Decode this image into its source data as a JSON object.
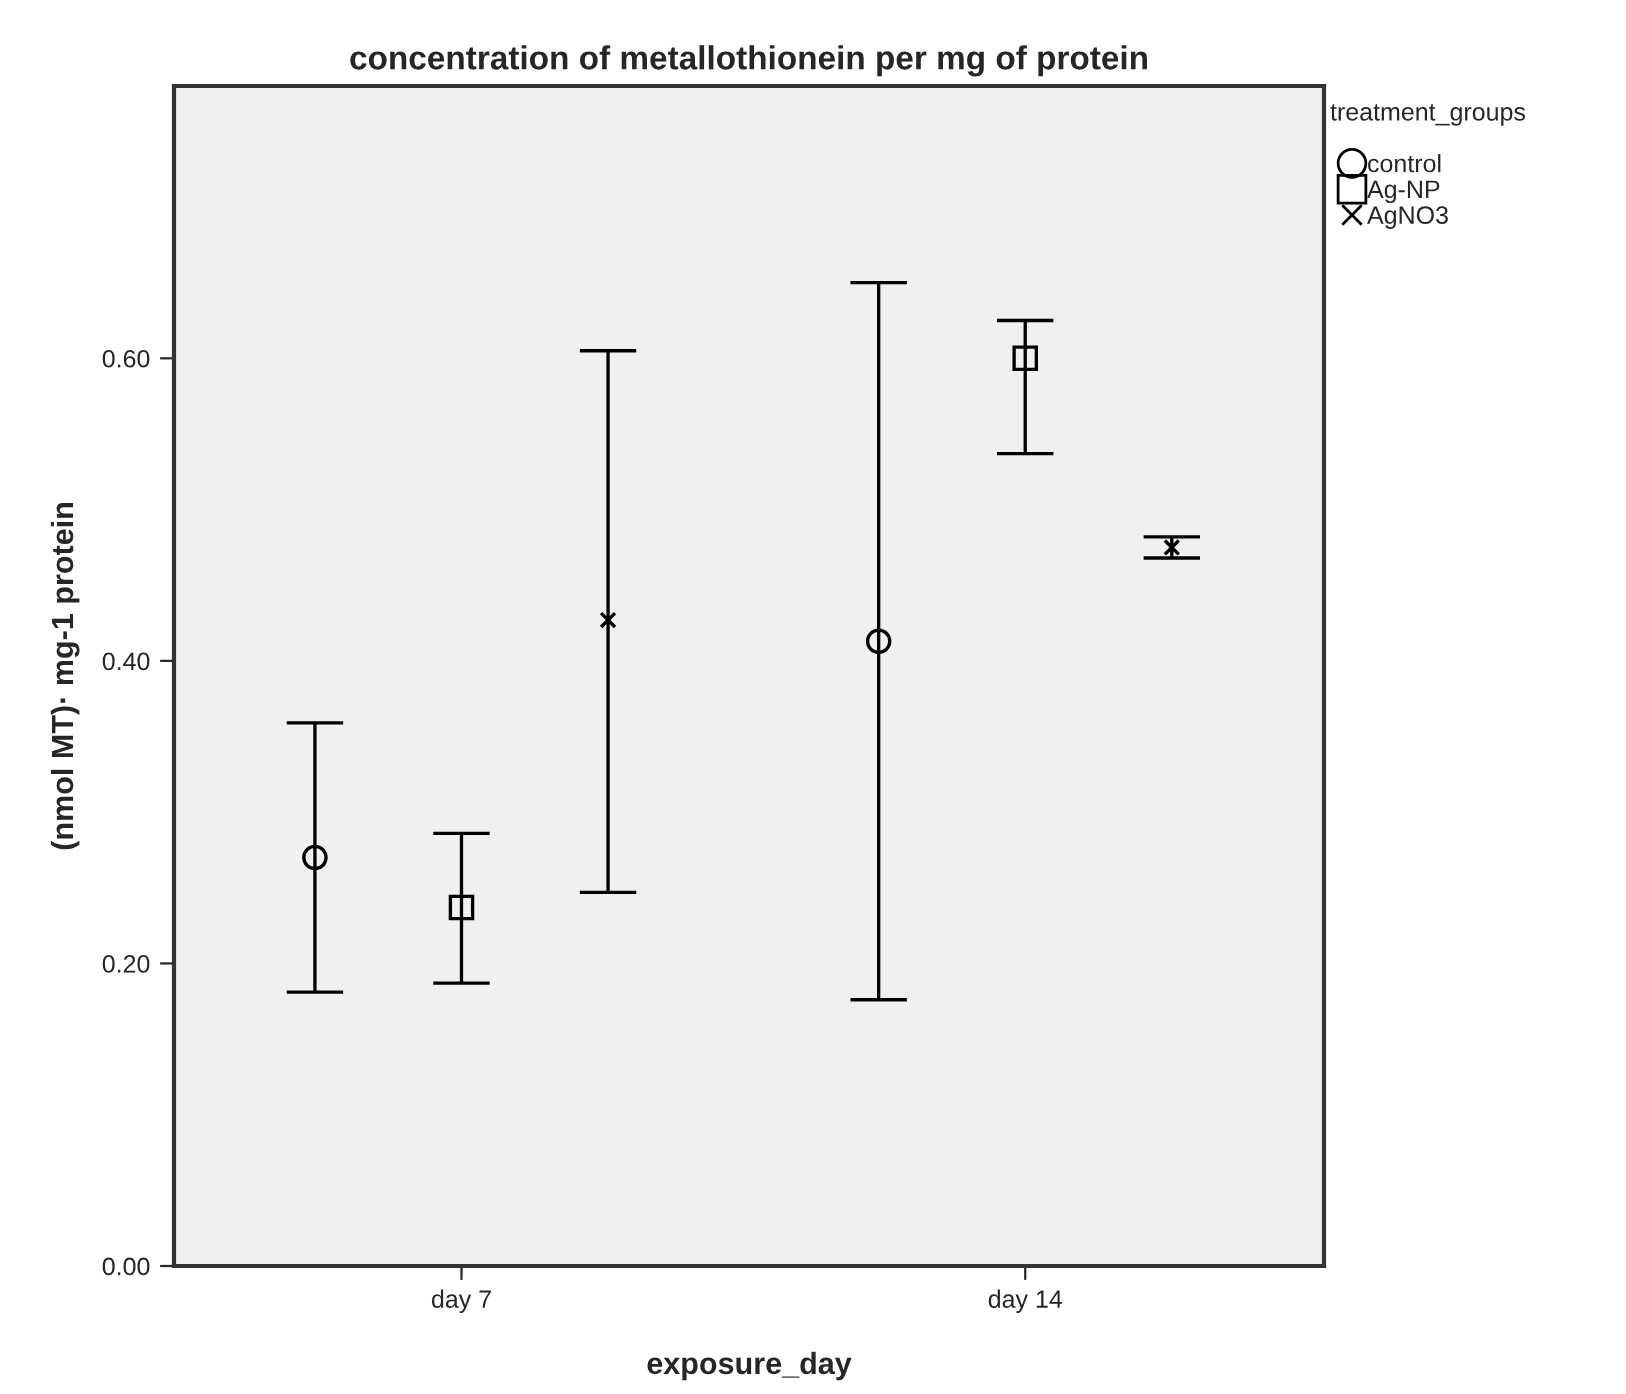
{
  "chart_data": {
    "type": "scatter",
    "title": "concentration of metallothionein per mg of protein",
    "xlabel": "exposure_day",
    "ylabel": "(nmol MT)· mg-1 protein",
    "legend_title": "treatment_groups",
    "categories": [
      "day 7",
      "day 14"
    ],
    "ylim": [
      0,
      0.78
    ],
    "yticks": [
      {
        "value": 0,
        "label": "0.00"
      },
      {
        "value": 0.2,
        "label": "0.20"
      },
      {
        "value": 0.4,
        "label": "0.40"
      },
      {
        "value": 0.6,
        "label": "0.60"
      }
    ],
    "grid": false,
    "legend": "top right",
    "series": [
      {
        "name": "control",
        "color": "#000000",
        "marker": "circle",
        "values": [
          0.27,
          0.413
        ],
        "errors": [
          [
            0.181,
            0.359
          ],
          [
            0.176,
            0.65
          ]
        ]
      },
      {
        "name": "Ag-NP",
        "color": "#000000",
        "marker": "square",
        "values": [
          0.237,
          0.6
        ],
        "errors": [
          [
            0.187,
            0.286
          ],
          [
            0.537,
            0.625
          ]
        ]
      },
      {
        "name": "AgNO3",
        "color": "#000000",
        "marker": "cross",
        "values": [
          0.427,
          0.475
        ],
        "errors": [
          [
            0.247,
            0.605
          ],
          [
            0.468,
            0.482
          ]
        ]
      }
    ]
  }
}
